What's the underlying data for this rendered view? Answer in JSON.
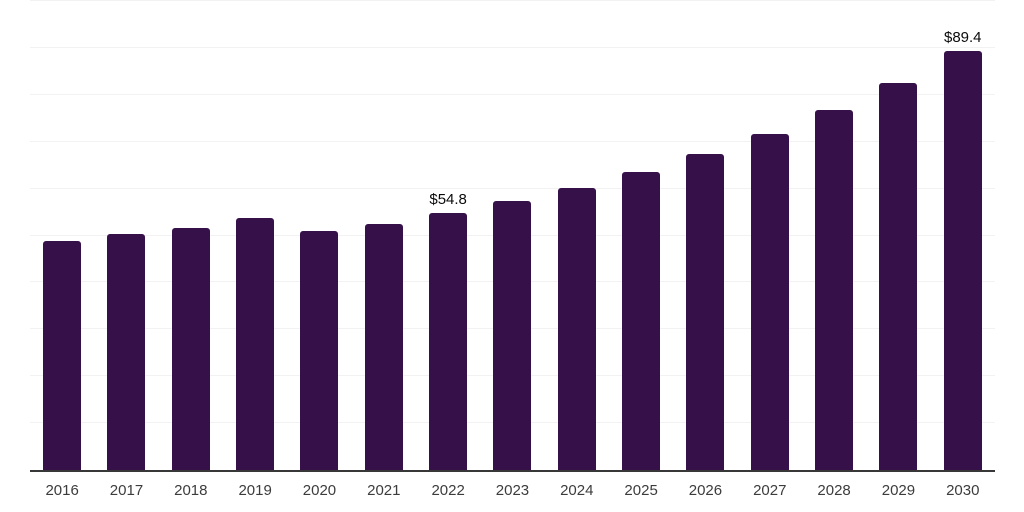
{
  "chart_style": {
    "background_color": "#ffffff",
    "bar_color": "#351049",
    "axis_line_color": "#383838",
    "gridline_color": "#f2f2f2",
    "tick_label_color": "#3c3c3c",
    "data_label_color": "#0b0b0b"
  },
  "chart_data": {
    "type": "bar",
    "title": "",
    "xlabel": "",
    "ylabel": "",
    "categories": [
      "2016",
      "2017",
      "2018",
      "2019",
      "2020",
      "2021",
      "2022",
      "2023",
      "2024",
      "2025",
      "2026",
      "2027",
      "2028",
      "2029",
      "2030"
    ],
    "values": [
      48.9,
      50.3,
      51.7,
      53.7,
      51.0,
      52.5,
      54.8,
      57.3,
      60.2,
      63.5,
      67.4,
      71.7,
      76.7,
      82.6,
      89.4
    ],
    "data_labels": [
      {
        "category": "2022",
        "text": "$54.8"
      },
      {
        "category": "2030",
        "text": "$89.4"
      }
    ],
    "ylim": [
      0,
      100
    ],
    "gridline_step": 10,
    "grid": "horizontal-only",
    "legend": "none",
    "y_axis_tick_labels_visible": false
  }
}
